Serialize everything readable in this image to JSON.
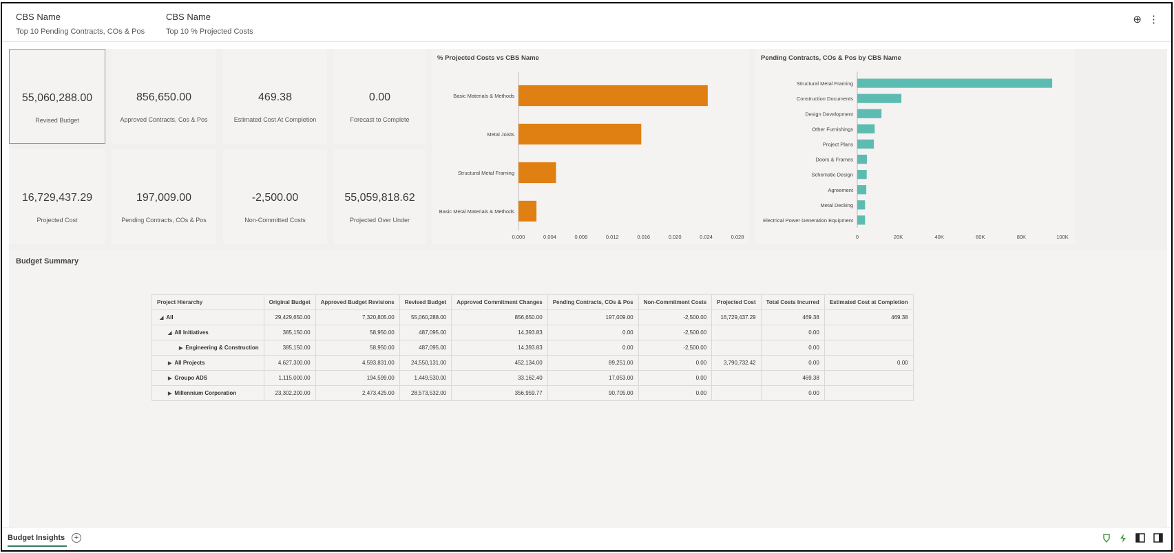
{
  "filters": [
    {
      "title": "CBS Name",
      "value": "Top 10 Pending Contracts, COs & Pos"
    },
    {
      "title": "CBS Name",
      "value": "Top 10 % Projected Costs"
    }
  ],
  "header_icons": {
    "globe": "⊕",
    "menu": "⋮"
  },
  "kpis": [
    {
      "value": "55,060,288.00",
      "label": "Revised Budget"
    },
    {
      "value": "856,650.00",
      "label": "Approved Contracts, Cos & Pos"
    },
    {
      "value": "469.38",
      "label": "Estimated Cost At Completion"
    },
    {
      "value": "0.00",
      "label": "Forecast to Complete"
    },
    {
      "value": "16,729,437.29",
      "label": "Projected Cost"
    },
    {
      "value": "197,009.00",
      "label": "Pending Contracts, COs & Pos"
    },
    {
      "value": "-2,500.00",
      "label": "Non-Committed Costs"
    },
    {
      "value": "55,059,818.62",
      "label": "Projected Over Under"
    }
  ],
  "chart_data": [
    {
      "type": "bar",
      "orientation": "horizontal",
      "title": "% Projected Costs vs CBS Name",
      "categories": [
        "Basic Materials & Methods",
        "Metal Joists",
        "Structural Metal Framing",
        "Basic Metal Materials & Methods"
      ],
      "values": [
        0.0242,
        0.0157,
        0.0048,
        0.0023
      ],
      "xlim": [
        0,
        0.028
      ],
      "xticks": [
        "0.000",
        "0.004",
        "0.008",
        "0.012",
        "0.016",
        "0.020",
        "0.024",
        "0.028"
      ],
      "color": "#e07f12"
    },
    {
      "type": "bar",
      "orientation": "horizontal",
      "title": "Pending Contracts, COs & Pos by CBS Name",
      "categories": [
        "Structural Metal Framing",
        "Construction Documents",
        "Design Development",
        "Other Furnishings",
        "Project Plans",
        "Doors & Frames",
        "Schematic Design",
        "Agreement",
        "Metal Decking",
        "Electrical Power Generation Equipment"
      ],
      "values": [
        95000,
        21500,
        11800,
        8500,
        8100,
        4700,
        4600,
        4400,
        3800,
        3800
      ],
      "xlim": [
        0,
        100000
      ],
      "xticks": [
        "0",
        "20K",
        "40K",
        "60K",
        "80K",
        "100K"
      ],
      "color": "#5dbcb2"
    }
  ],
  "budget": {
    "title": "Budget Summary",
    "columns": [
      "Project Hierarchy",
      "Original Budget",
      "Approved Budget Revisions",
      "Revised Budget",
      "Approved Commitment Changes",
      "Pending Contracts, COs & Pos",
      "Non-Commitment Costs",
      "Projected Cost",
      "Total Costs Incurred",
      "Estimated Cost at Completion"
    ],
    "rows": [
      {
        "tri": "◢",
        "label": "All",
        "cells": [
          "29,429,650.00",
          "7,320,805.00",
          "55,060,288.00",
          "856,650.00",
          "197,009.00",
          "-2,500.00",
          "16,729,437.29",
          "469.38",
          "469.38"
        ]
      },
      {
        "tri": "◢",
        "label": "All Initiatives",
        "cells": [
          "385,150.00",
          "58,950.00",
          "487,095.00",
          "14,393.83",
          "0.00",
          "-2,500.00",
          "",
          "0.00",
          ""
        ]
      },
      {
        "tri": "▶",
        "label": "Engineering & Construction",
        "cells": [
          "385,150.00",
          "58,950.00",
          "487,095.00",
          "14,393.83",
          "0.00",
          "-2,500.00",
          "",
          "0.00",
          ""
        ]
      },
      {
        "tri": "▶",
        "label": "All Projects",
        "cells": [
          "4,627,300.00",
          "4,593,831.00",
          "24,550,131.00",
          "452,134.00",
          "89,251.00",
          "0.00",
          "3,790,732.42",
          "0.00",
          "0.00"
        ]
      },
      {
        "tri": "▶",
        "label": "Groupo ADS",
        "cells": [
          "1,115,000.00",
          "194,599.00",
          "1,449,530.00",
          "33,162.40",
          "17,053.00",
          "0.00",
          "",
          "469.38",
          ""
        ]
      },
      {
        "tri": "▶",
        "label": "Millennium Corporation",
        "cells": [
          "23,302,200.00",
          "2,473,425.00",
          "28,573,532.00",
          "356,959.77",
          "90,705.00",
          "0.00",
          "",
          "0.00",
          ""
        ]
      }
    ]
  },
  "bottom": {
    "tab_label": "Budget Insights",
    "add_tab": "+"
  }
}
